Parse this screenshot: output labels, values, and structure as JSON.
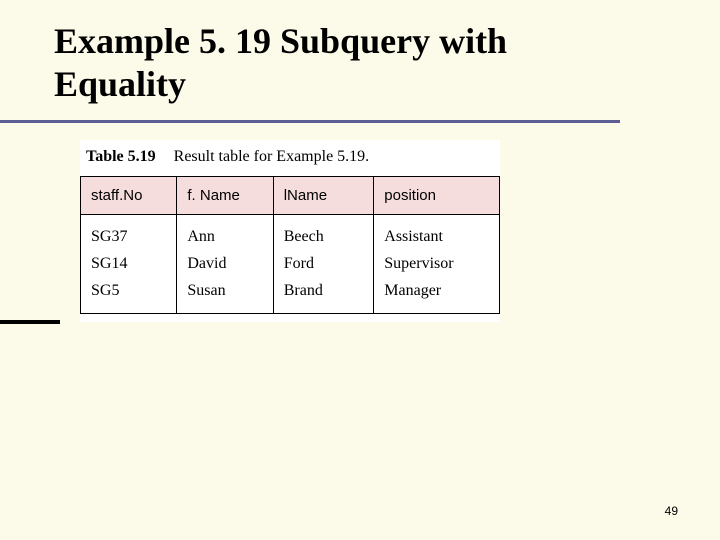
{
  "colors": {
    "slide_background": "#fcfae8",
    "underline": "#5e5e97",
    "table_header_fill": "#f4dddc",
    "table_border": "#000000",
    "table_cell_bg": "#ffffff",
    "text": "#000000"
  },
  "typography": {
    "title_fontsize_pt": 27,
    "title_font": "Times New Roman",
    "title_weight": "bold",
    "caption_fontsize_pt": 12,
    "header_font": "Arial",
    "header_fontsize_pt": 11,
    "cell_fontsize_pt": 12,
    "page_num_fontsize_pt": 9
  },
  "title": {
    "line1": "Example 5. 19  Subquery with",
    "line2": "Equality"
  },
  "table": {
    "type": "table",
    "caption_label": "Table 5.19",
    "caption_text": "Result table for Example 5.19.",
    "columns": [
      "staff.No",
      "f. Name",
      "lName",
      "position"
    ],
    "column_widths_pct": [
      23,
      23,
      24,
      30
    ],
    "rows": [
      [
        "SG37",
        "Ann",
        "Beech",
        "Assistant"
      ],
      [
        "SG14",
        "David",
        "Ford",
        "Supervisor"
      ],
      [
        "SG5",
        "Susan",
        "Brand",
        "Manager"
      ]
    ]
  },
  "page_number": "49"
}
